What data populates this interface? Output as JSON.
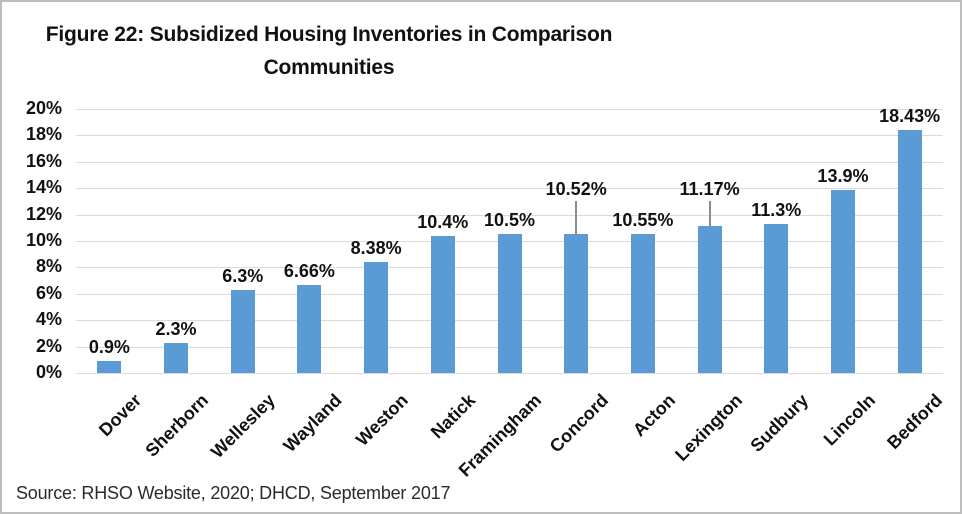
{
  "title": {
    "line1": "Figure 22: Subsidized Housing Inventories in Comparison",
    "line2": "Communities"
  },
  "source": {
    "text": "Source: RHSO Website, 2020; DHCD, September 2017"
  },
  "chart_data": {
    "type": "bar",
    "title": "Figure 22: Subsidized Housing Inventories in Comparison Communities",
    "categories": [
      "Dover",
      "Sherborn",
      "Wellesley",
      "Wayland",
      "Weston",
      "Natick",
      "Framingham",
      "Concord",
      "Acton",
      "Lexington",
      "Sudbury",
      "Lincoln",
      "Bedford"
    ],
    "values": [
      0.9,
      2.3,
      6.3,
      6.66,
      8.38,
      10.4,
      10.5,
      10.52,
      10.55,
      11.17,
      11.3,
      13.9,
      18.43
    ],
    "data_labels": [
      "0.9%",
      "2.3%",
      "6.3%",
      "6.66%",
      "8.38%",
      "10.4%",
      "10.5%",
      "10.52%",
      "10.55%",
      "11.17%",
      "11.3%",
      "13.9%",
      "18.43%"
    ],
    "callout_labels": [
      "Concord",
      "Lexington"
    ],
    "xlabel": "",
    "ylabel": "",
    "ylim": [
      0,
      20
    ],
    "ytick_step": 2,
    "ytick_labels": [
      "0%",
      "2%",
      "4%",
      "6%",
      "8%",
      "10%",
      "12%",
      "14%",
      "16%",
      "18%",
      "20%"
    ],
    "grid": true,
    "legend": "none",
    "bar_color": "#5B9BD5",
    "gridline_color": "#DBDBDB",
    "leader_line_color": "#8c8c8c",
    "source": "Source: RHSO Website, 2020; DHCD, September 2017"
  }
}
